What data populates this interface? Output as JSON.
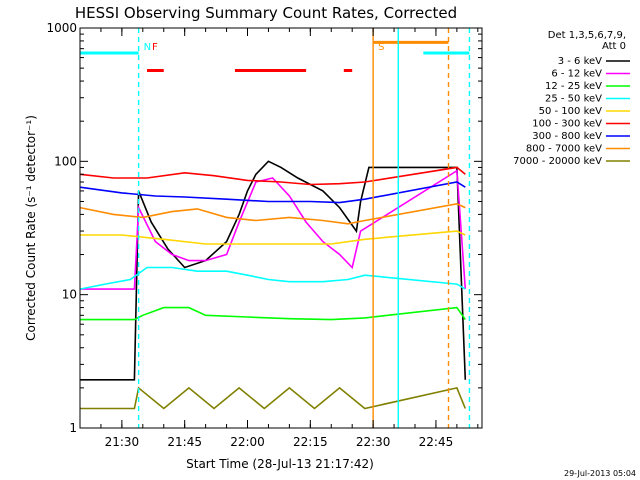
{
  "chart_data": {
    "type": "line",
    "title": "HESSI Observing Summary Count Rates, Corrected",
    "xlabel": "Start Time (28-Jul-13 21:17:42)",
    "ylabel": "Corrected Count Rate (s⁻¹ detector⁻¹)",
    "y_scale": "log",
    "ylim": [
      1,
      1000
    ],
    "xlim": [
      "21:20",
      "22:56"
    ],
    "x_ticks": [
      "21:30",
      "21:45",
      "22:00",
      "22:15",
      "22:30",
      "22:45"
    ],
    "y_ticks": [
      {
        "value": 1,
        "label": "1"
      },
      {
        "value": 10,
        "label": "10"
      },
      {
        "value": 100,
        "label": "100"
      },
      {
        "value": 1000,
        "label": "1000"
      }
    ],
    "timestamp": "29-Jul-2013 05:04",
    "legend_header": [
      "Det 1,3,5,6,7,9,",
      "Att 0"
    ],
    "legend_placement": "right",
    "series": [
      {
        "name": "3 - 6 keV",
        "color": "#000000",
        "points": [
          [
            "21:20",
            2.3
          ],
          [
            "21:33",
            2.3
          ],
          [
            "21:34",
            60
          ],
          [
            "21:37",
            35
          ],
          [
            "21:41",
            22
          ],
          [
            "21:45",
            16
          ],
          [
            "21:50",
            18
          ],
          [
            "21:55",
            25
          ],
          [
            "21:58",
            40
          ],
          [
            "22:00",
            60
          ],
          [
            "22:02",
            80
          ],
          [
            "22:05",
            100
          ],
          [
            "22:08",
            90
          ],
          [
            "22:12",
            75
          ],
          [
            "22:18",
            60
          ],
          [
            "22:22",
            45
          ],
          [
            "22:26",
            30
          ],
          [
            "22:27",
            50
          ],
          [
            "22:29",
            90
          ],
          [
            "22:50",
            90
          ],
          [
            "22:52",
            2.3
          ]
        ]
      },
      {
        "name": "6 - 12 keV",
        "color": "#ff00ff",
        "points": [
          [
            "21:20",
            11
          ],
          [
            "21:33",
            11
          ],
          [
            "21:34",
            45
          ],
          [
            "21:38",
            25
          ],
          [
            "21:42",
            20
          ],
          [
            "21:46",
            18
          ],
          [
            "21:50",
            18
          ],
          [
            "21:55",
            20
          ],
          [
            "21:58",
            35
          ],
          [
            "22:02",
            70
          ],
          [
            "22:06",
            75
          ],
          [
            "22:10",
            55
          ],
          [
            "22:14",
            35
          ],
          [
            "22:18",
            25
          ],
          [
            "22:22",
            20
          ],
          [
            "22:25",
            16
          ],
          [
            "22:27",
            30
          ],
          [
            "22:50",
            85
          ],
          [
            "22:52",
            11
          ]
        ]
      },
      {
        "name": "12 - 25 keV",
        "color": "#00ff00",
        "points": [
          [
            "21:20",
            6.5
          ],
          [
            "21:33",
            6.5
          ],
          [
            "21:35",
            7
          ],
          [
            "21:40",
            8
          ],
          [
            "21:46",
            8
          ],
          [
            "21:50",
            7
          ],
          [
            "22:00",
            6.8
          ],
          [
            "22:10",
            6.6
          ],
          [
            "22:20",
            6.5
          ],
          [
            "22:28",
            6.7
          ],
          [
            "22:50",
            8
          ],
          [
            "22:52",
            6.5
          ]
        ]
      },
      {
        "name": "25 - 50 keV",
        "color": "#00ffff",
        "points": [
          [
            "21:20",
            11
          ],
          [
            "21:26",
            12
          ],
          [
            "21:32",
            13
          ],
          [
            "21:36",
            16
          ],
          [
            "21:42",
            16
          ],
          [
            "21:48",
            15
          ],
          [
            "21:55",
            15
          ],
          [
            "22:00",
            14
          ],
          [
            "22:05",
            13
          ],
          [
            "22:10",
            12.5
          ],
          [
            "22:18",
            12.5
          ],
          [
            "22:24",
            13
          ],
          [
            "22:28",
            14
          ],
          [
            "22:50",
            12
          ],
          [
            "22:52",
            11
          ]
        ]
      },
      {
        "name": "50 - 100 keV",
        "color": "#ffd700",
        "points": [
          [
            "21:20",
            28
          ],
          [
            "21:30",
            28
          ],
          [
            "21:40",
            26
          ],
          [
            "21:50",
            24
          ],
          [
            "22:00",
            24
          ],
          [
            "22:10",
            24
          ],
          [
            "22:20",
            24
          ],
          [
            "22:28",
            26
          ],
          [
            "22:50",
            30
          ],
          [
            "22:52",
            28
          ]
        ]
      },
      {
        "name": "100 - 300 keV",
        "color": "#ff0000",
        "points": [
          [
            "21:20",
            80
          ],
          [
            "21:28",
            75
          ],
          [
            "21:36",
            75
          ],
          [
            "21:45",
            82
          ],
          [
            "21:52",
            78
          ],
          [
            "22:00",
            72
          ],
          [
            "22:08",
            70
          ],
          [
            "22:15",
            67
          ],
          [
            "22:22",
            68
          ],
          [
            "22:28",
            70
          ],
          [
            "22:50",
            90
          ],
          [
            "22:52",
            80
          ]
        ]
      },
      {
        "name": "300 - 800 keV",
        "color": "#0000ff",
        "points": [
          [
            "21:20",
            64
          ],
          [
            "21:30",
            58
          ],
          [
            "21:38",
            55
          ],
          [
            "21:45",
            54
          ],
          [
            "21:55",
            52
          ],
          [
            "22:05",
            50
          ],
          [
            "22:15",
            50
          ],
          [
            "22:22",
            49
          ],
          [
            "22:28",
            52
          ],
          [
            "22:50",
            70
          ],
          [
            "22:52",
            64
          ]
        ]
      },
      {
        "name": "800 - 7000 keV",
        "color": "#ff8c00",
        "points": [
          [
            "21:20",
            45
          ],
          [
            "21:28",
            40
          ],
          [
            "21:35",
            38
          ],
          [
            "21:42",
            42
          ],
          [
            "21:48",
            44
          ],
          [
            "21:55",
            38
          ],
          [
            "22:02",
            36
          ],
          [
            "22:10",
            38
          ],
          [
            "22:18",
            36
          ],
          [
            "22:24",
            34
          ],
          [
            "22:28",
            36
          ],
          [
            "22:50",
            48
          ],
          [
            "22:52",
            45
          ]
        ]
      },
      {
        "name": "7000 - 20000 keV",
        "color": "#808000",
        "points": [
          [
            "21:20",
            1.4
          ],
          [
            "21:33",
            1.4
          ],
          [
            "21:34",
            2
          ],
          [
            "21:40",
            1.4
          ],
          [
            "21:46",
            2
          ],
          [
            "21:52",
            1.4
          ],
          [
            "21:58",
            2
          ],
          [
            "22:04",
            1.4
          ],
          [
            "22:10",
            2
          ],
          [
            "22:16",
            1.4
          ],
          [
            "22:22",
            2
          ],
          [
            "22:28",
            1.4
          ],
          [
            "22:50",
            2
          ],
          [
            "22:52",
            1.4
          ]
        ]
      }
    ],
    "annotations": [
      {
        "label": "N",
        "color": "#00ffff",
        "time": "21:34"
      },
      {
        "label": "F",
        "color": "#ff0000",
        "time": "21:36"
      },
      {
        "label": "S",
        "color": "#ff8c00",
        "time": "22:30"
      }
    ],
    "flag_bars": [
      {
        "color": "#00ffff",
        "start": "21:20",
        "end": "21:34",
        "value": 650
      },
      {
        "color": "#00ffff",
        "start": "22:42",
        "end": "22:53",
        "value": 650
      },
      {
        "color": "#ff8c00",
        "start": "22:30",
        "end": "22:48",
        "value": 780
      },
      {
        "color": "#ff0000",
        "start": "21:36",
        "end": "21:40",
        "value": 480
      },
      {
        "color": "#ff0000",
        "start": "21:57",
        "end": "22:14",
        "value": 480
      },
      {
        "color": "#ff0000",
        "start": "22:23",
        "end": "22:25",
        "value": 480
      }
    ],
    "vertical_lines": [
      {
        "time": "21:34",
        "color": "#00ffff",
        "style": "dashed"
      },
      {
        "time": "22:30",
        "color": "#ff8c00",
        "style": "solid"
      },
      {
        "time": "22:36",
        "color": "#00ffff",
        "style": "solid"
      },
      {
        "time": "22:48",
        "color": "#ff8c00",
        "style": "dashed"
      },
      {
        "time": "22:53",
        "color": "#00ffff",
        "style": "dashed"
      }
    ],
    "grid": false
  }
}
